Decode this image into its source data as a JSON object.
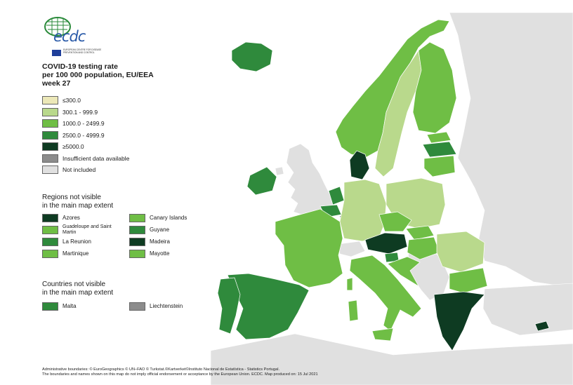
{
  "logo": {
    "text": "ecdc",
    "subtext": "European Centre for Disease Prevention and Control"
  },
  "title": {
    "line1": "COVID-19 testing rate",
    "line2": "per 100 000 population, EU/EEA",
    "line3": "week 27"
  },
  "colors": {
    "c1": "#ece8b8",
    "c2": "#b9d98c",
    "c3": "#6fbe45",
    "c4": "#2f8a3c",
    "c5": "#0e3b22",
    "insufficient": "#8c8c8c",
    "not_included": "#e0e0e0",
    "sea": "#ffffff"
  },
  "legend": [
    {
      "label": "≤300.0",
      "color": "#ece8b8"
    },
    {
      "label": "300.1 - 999.9",
      "color": "#b9d98c"
    },
    {
      "label": "1000.0 - 2499.9",
      "color": "#6fbe45"
    },
    {
      "label": "2500.0 - 4999.9",
      "color": "#2f8a3c"
    },
    {
      "label": "≥5000.0",
      "color": "#0e3b22"
    },
    {
      "label": "Insufficient data available",
      "color": "#8c8c8c"
    },
    {
      "label": "Not included",
      "color": "#e0e0e0"
    }
  ],
  "regions_title": {
    "line1": "Regions not visible",
    "line2": "in the main map extent"
  },
  "regions": [
    {
      "label": "Azores",
      "color": "#0e3b22"
    },
    {
      "label": "Canary Islands",
      "color": "#6fbe45"
    },
    {
      "label": "Guadeloupe and Saint Martin",
      "color": "#6fbe45"
    },
    {
      "label": "Guyane",
      "color": "#2f8a3c"
    },
    {
      "label": "La Reunion",
      "color": "#2f8a3c"
    },
    {
      "label": "Madeira",
      "color": "#0e3b22"
    },
    {
      "label": "Martinique",
      "color": "#6fbe45"
    },
    {
      "label": "Mayotte",
      "color": "#6fbe45"
    }
  ],
  "countries_title": {
    "line1": "Countries not visible",
    "line2": "in the main map extent"
  },
  "countries": [
    {
      "label": "Malta",
      "color": "#2f8a3c"
    },
    {
      "label": "Liechtenstein",
      "color": "#8c8c8c"
    }
  ],
  "footer": {
    "line1": "Administrative boundaries: © EuroGeographics © UN–FAO © Turkstat.©Kartverket©Instituto Nacional de Estatística - Statistics Portugal.",
    "line2": "The boundaries and names shown on this map do not imply official endorsement or acceptance by the European Union. ECDC. Map produced on: 15 Jul 2021"
  },
  "map_classes": {
    "iceland": "c4",
    "norway": "c3",
    "sweden": "c2",
    "finland": "c3",
    "estonia": "c3",
    "latvia": "c4",
    "lithuania": "c3",
    "denmark": "c5",
    "ireland": "c4",
    "netherlands": "c4",
    "belgium": "c4",
    "luxembourg": "c5",
    "germany": "c2",
    "poland": "c2",
    "czechia": "c3",
    "slovakia": "c3",
    "austria": "c5",
    "hungary": "c3",
    "slovenia": "c4",
    "croatia": "c3",
    "romania": "c2",
    "bulgaria": "c3",
    "greece": "c5",
    "cyprus": "c5",
    "italy": "c3",
    "france": "c3",
    "spain": "c4",
    "portugal": "c4"
  }
}
